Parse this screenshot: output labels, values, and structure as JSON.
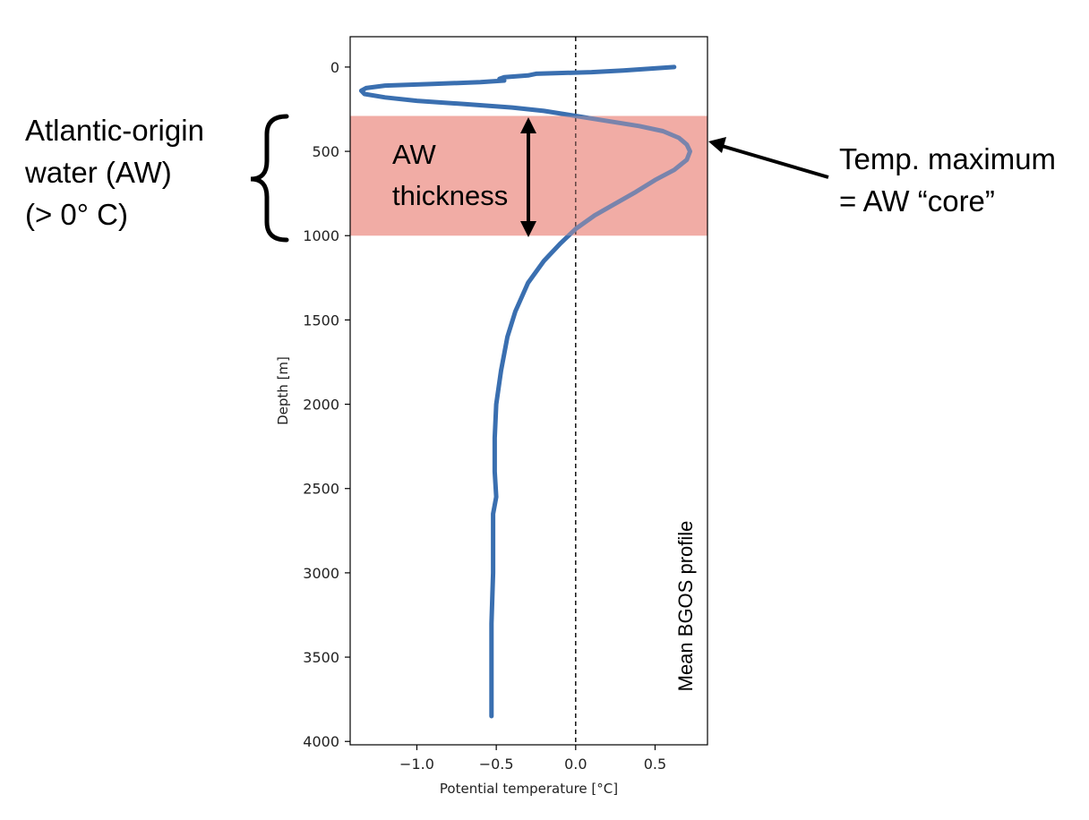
{
  "chart_data": {
    "type": "line",
    "xlabel": "Potential temperature [°C]",
    "ylabel": "Depth [m]",
    "xlim": [
      -1.42,
      0.83
    ],
    "ylim": [
      4020,
      -180
    ],
    "y_inverted": true,
    "xticks": [
      -1.0,
      -0.5,
      0.0,
      0.5
    ],
    "xtick_labels": [
      "−1.0",
      "−0.5",
      "0.0",
      "0.5"
    ],
    "yticks": [
      0,
      500,
      1000,
      1500,
      2000,
      2500,
      3000,
      3500,
      4000
    ],
    "ytick_labels": [
      "0",
      "500",
      "1000",
      "1500",
      "2000",
      "2500",
      "3000",
      "3500",
      "4000"
    ],
    "grid": false,
    "colors": {
      "line": "#3a6fb0",
      "band": "#f2aca5",
      "zero_line": "#000000"
    },
    "reference_line": {
      "x": 0.0,
      "style": "dashed"
    },
    "highlight_band": {
      "depth_from": 290,
      "depth_to": 1000
    },
    "series": [
      {
        "x": [
          0.62,
          0.3,
          0.1,
          -0.25,
          -0.3,
          -0.45,
          -0.48,
          -0.45,
          -0.6,
          -0.9,
          -1.2,
          -1.32,
          -1.35,
          -1.33,
          -1.2,
          -1.0,
          -0.7,
          -0.4,
          -0.2,
          0.0,
          0.2,
          0.4,
          0.55,
          0.65,
          0.7,
          0.72,
          0.7,
          0.62,
          0.5,
          0.38,
          0.25,
          0.12,
          0.0,
          -0.1,
          -0.2,
          -0.3,
          -0.38,
          -0.43,
          -0.47,
          -0.5,
          -0.51,
          -0.51,
          -0.5,
          -0.52,
          -0.52,
          -0.53,
          -0.53,
          -0.53
        ],
        "y": [
          0,
          20,
          30,
          40,
          50,
          60,
          70,
          80,
          90,
          100,
          110,
          125,
          140,
          160,
          180,
          200,
          220,
          240,
          260,
          290,
          320,
          350,
          380,
          420,
          460,
          500,
          550,
          610,
          670,
          740,
          810,
          880,
          960,
          1050,
          1150,
          1280,
          1450,
          1600,
          1800,
          2000,
          2200,
          2400,
          2550,
          2650,
          3000,
          3300,
          3600,
          3850
        ]
      }
    ]
  },
  "annotations": {
    "aw_label_lines": [
      "Atlantic-origin",
      "water (AW)",
      "(> 0° C)"
    ],
    "thickness_label_lines": [
      "AW",
      "thickness"
    ],
    "core_label_lines": [
      "Temp. maximum",
      "= AW “core”"
    ],
    "profile_label": "Mean BGOS profile"
  }
}
